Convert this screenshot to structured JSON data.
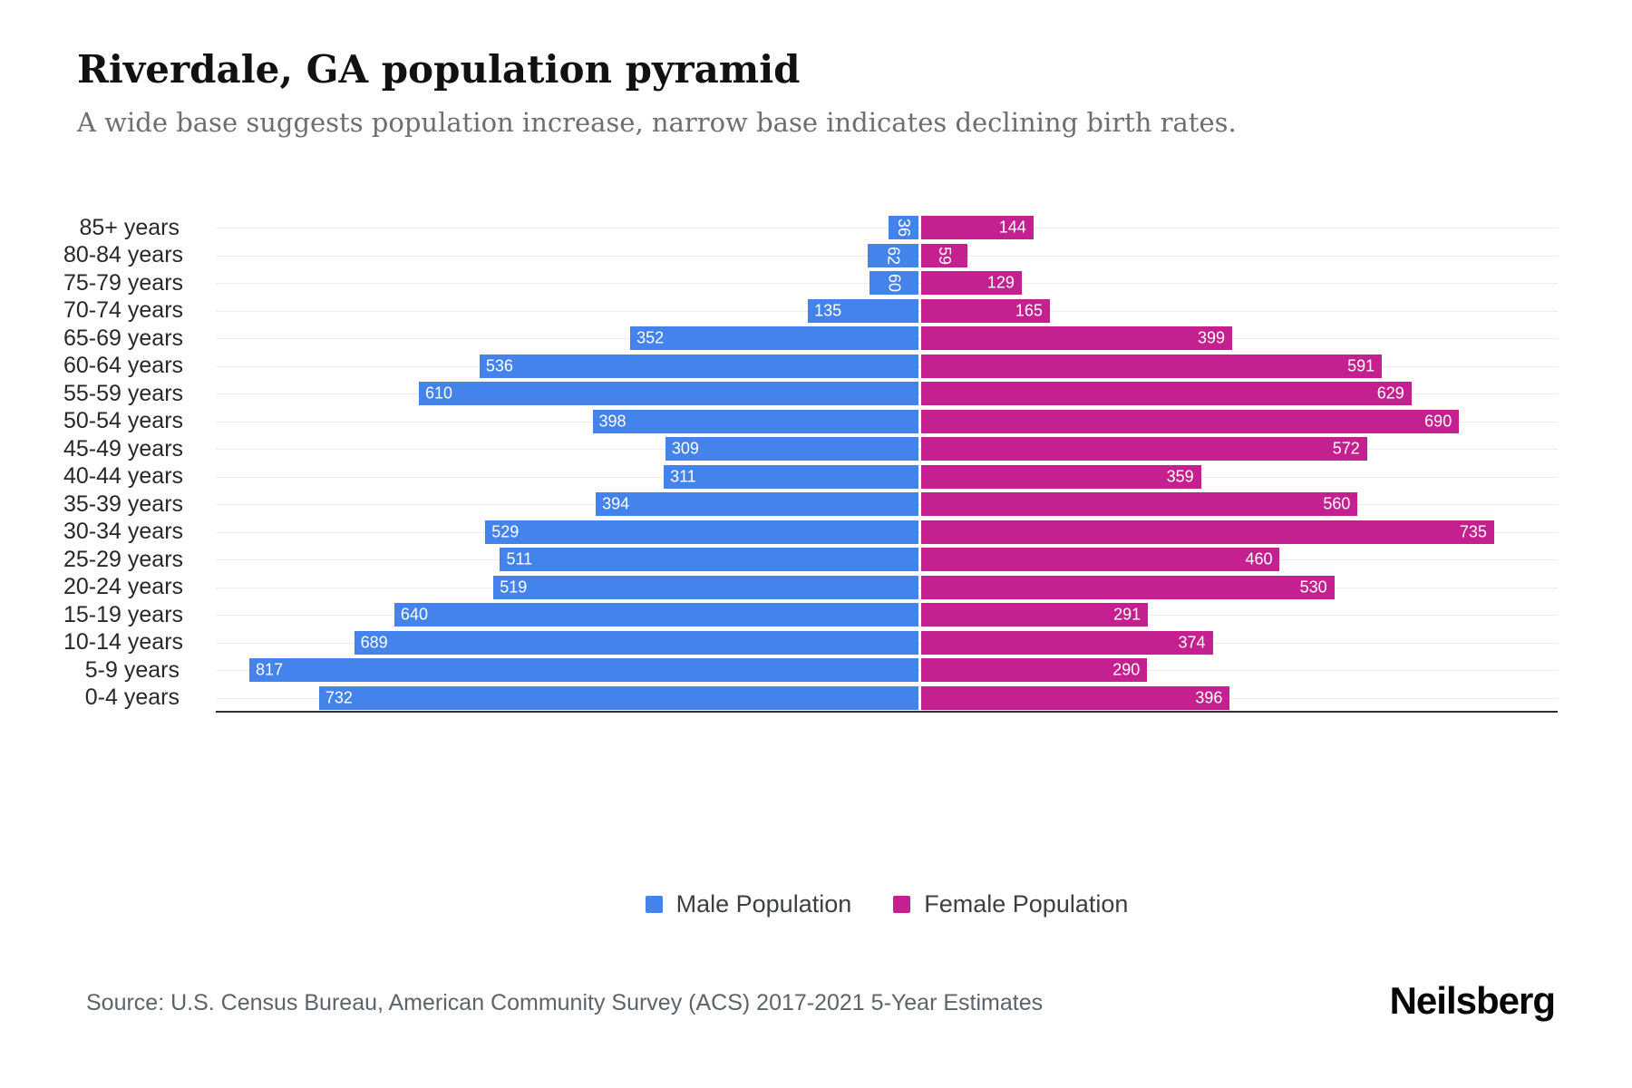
{
  "title": "Riverdale, GA population pyramid",
  "subtitle": "A wide base suggests population increase, narrow base indicates declining birth rates.",
  "source": "Source: U.S. Census Bureau, American Community Survey (ACS) 2017-2021 5-Year Estimates",
  "brand": "Neilsberg",
  "legend": {
    "male_label": "Male Population",
    "female_label": "Female Population"
  },
  "colors": {
    "male": "#4583EC",
    "female": "#C4208F",
    "grid": "#ebebeb",
    "axis": "#2d2e2e"
  },
  "chart_data": {
    "type": "bar",
    "variant": "population-pyramid",
    "orientation": "horizontal",
    "title": "Riverdale, GA population pyramid",
    "categories": [
      "85+ years",
      "80-84 years",
      "75-79 years",
      "70-74 years",
      "65-69 years",
      "60-64 years",
      "55-59 years",
      "50-54 years",
      "45-49 years",
      "40-44 years",
      "35-39 years",
      "30-34 years",
      "25-29 years",
      "20-24 years",
      "15-19 years",
      "10-14 years",
      "5-9 years",
      "0-4 years"
    ],
    "series": [
      {
        "name": "Male Population",
        "values": [
          36,
          62,
          60,
          135,
          352,
          536,
          610,
          398,
          309,
          311,
          394,
          529,
          511,
          519,
          640,
          689,
          817,
          732
        ]
      },
      {
        "name": "Female Population",
        "values": [
          144,
          59,
          129,
          165,
          399,
          591,
          629,
          690,
          572,
          359,
          560,
          735,
          460,
          530,
          291,
          374,
          290,
          396
        ]
      }
    ],
    "value_labels": "inside-far-end, rotated vertical when value < 100",
    "axis_scale_max_male": 858,
    "axis_scale_max_female": 820,
    "grid": "horizontal row lines",
    "legend_position": "bottom-center"
  }
}
